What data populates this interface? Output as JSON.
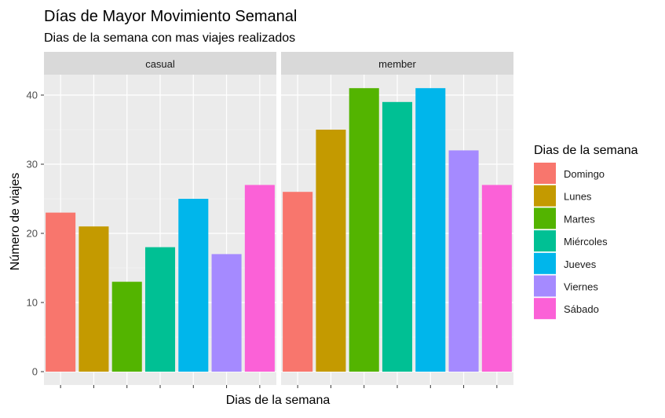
{
  "chart_data": {
    "type": "bar",
    "title": "Días de Mayor Movimiento Semanal",
    "subtitle": "Dias de la semana con mas viajes realizados",
    "xlabel": "Dias de la semana",
    "ylabel": "Número de viajes",
    "ylim": [
      0,
      45
    ],
    "yticks": [
      0,
      10,
      20,
      30,
      40
    ],
    "grid": true,
    "legend_title": "Dias de la semana",
    "legend_position": "right",
    "categories": [
      "Domingo",
      "Lunes",
      "Martes",
      "Miércoles",
      "Jueves",
      "Viernes",
      "Sábado"
    ],
    "colors": [
      "#F8766D",
      "#C49A00",
      "#53B400",
      "#00C094",
      "#00B6EB",
      "#A58AFF",
      "#FB61D7"
    ],
    "facets": [
      {
        "name": "casual",
        "values": [
          23,
          21,
          13,
          18,
          25,
          17,
          27
        ]
      },
      {
        "name": "member",
        "values": [
          26,
          35,
          41,
          39,
          41,
          32,
          27
        ]
      }
    ]
  }
}
